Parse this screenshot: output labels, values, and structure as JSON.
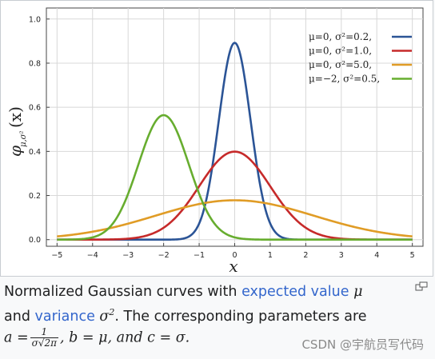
{
  "chart_data": {
    "type": "line",
    "xlabel": "x",
    "ylabel": "φ_{μ,σ²}(x)",
    "ylabel_main": "φ",
    "ylabel_sub": "μ,σ²",
    "ylabel_arg": "(x)",
    "xlim": [
      -5.3,
      5.3
    ],
    "ylim": [
      -0.03,
      1.05
    ],
    "xticks": [
      -5,
      -4,
      -3,
      -2,
      -1,
      0,
      1,
      2,
      3,
      4,
      5
    ],
    "xtick_labels": [
      "−5",
      "−4",
      "−3",
      "−2",
      "−1",
      "0",
      "1",
      "2",
      "3",
      "4",
      "5"
    ],
    "yticks": [
      0.0,
      0.2,
      0.4,
      0.6,
      0.8,
      1.0
    ],
    "ytick_labels": [
      "0.0",
      "0.2",
      "0.4",
      "0.6",
      "0.8",
      "1.0"
    ],
    "grid": true,
    "legend_position": "top-right",
    "x": [
      -5,
      -4.5,
      -4,
      -3.5,
      -3,
      -2.5,
      -2,
      -1.5,
      -1,
      -0.5,
      0,
      0.5,
      1,
      1.5,
      2,
      2.5,
      3,
      3.5,
      4,
      4.5,
      5
    ],
    "series": [
      {
        "name": "μ=0,   σ²=0.2,",
        "color": "#2b5496",
        "mu": 0,
        "sigma2": 0.2,
        "values": [
          0.0,
          0.0,
          0.0,
          0.0,
          0.0,
          0.0,
          0.0,
          0.0,
          0.007,
          0.481,
          0.892,
          0.481,
          0.007,
          0.0,
          0.0,
          0.0,
          0.0,
          0.0,
          0.0,
          0.0,
          0.0
        ]
      },
      {
        "name": "μ=0,   σ²=1.0,",
        "color": "#c62a2a",
        "mu": 0,
        "sigma2": 1.0,
        "values": [
          0.0,
          0.0,
          0.0001,
          0.0009,
          0.0044,
          0.0175,
          0.054,
          0.1295,
          0.242,
          0.352,
          0.399,
          0.352,
          0.242,
          0.1295,
          0.054,
          0.0175,
          0.0044,
          0.0009,
          0.0001,
          0.0,
          0.0
        ]
      },
      {
        "name": "μ=0,   σ²=5.0,",
        "color": "#e09c26",
        "mu": 0,
        "sigma2": 5.0,
        "values": [
          0.0146,
          0.0236,
          0.0361,
          0.0521,
          0.0725,
          0.0946,
          0.1195,
          0.143,
          0.1614,
          0.1733,
          0.1784,
          0.1733,
          0.1614,
          0.143,
          0.1195,
          0.0946,
          0.0725,
          0.0521,
          0.0361,
          0.0236,
          0.0146
        ]
      },
      {
        "name": "μ=−2, σ²=0.5,",
        "color": "#67ad2f",
        "mu": -2,
        "sigma2": 0.5,
        "values": [
          0.0001,
          0.0011,
          0.0103,
          0.0587,
          0.2076,
          0.4394,
          0.5642,
          0.4394,
          0.2076,
          0.0587,
          0.0103,
          0.0011,
          0.0001,
          0.0,
          0.0,
          0.0,
          0.0,
          0.0,
          0.0,
          0.0,
          0.0
        ]
      }
    ]
  },
  "caption": {
    "line1_text": "Normalized Gaussian curves with ",
    "link_expected_value": "expected value",
    "mu_symbol": "μ",
    "line2_and": "and ",
    "link_variance": "variance",
    "sigma_sq": "σ",
    "sigma_sq_exp": "2",
    "line2_rest": ". The corresponding parameters are",
    "a_eq": "a =",
    "frac_num": "1",
    "frac_den": "σ√2π",
    "b_part": ", b = μ, and c = σ."
  },
  "watermark": "CSDN @宇航员写代码",
  "colors": {
    "link": "#3366cc",
    "grid": "#d8d8d8"
  }
}
